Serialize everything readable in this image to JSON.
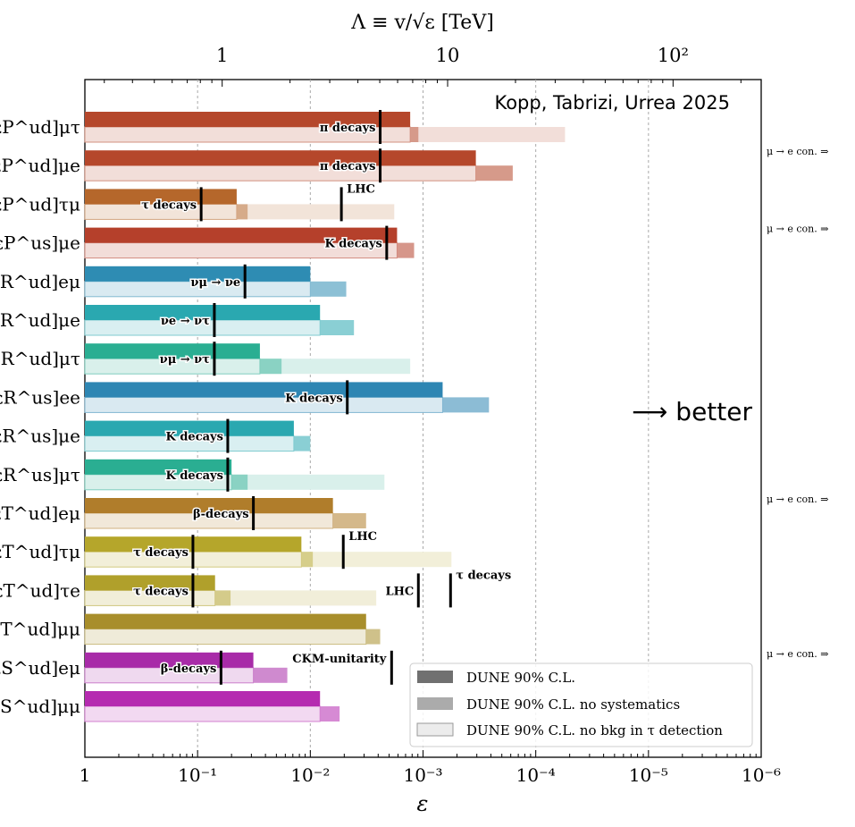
{
  "chart_data": {
    "type": "bar",
    "orientation": "horizontal",
    "title_top_axis": "Λ ≡ v/√ε [TeV]",
    "xlabel": "ε",
    "x_scale": "log-reversed",
    "xlim": [
      1,
      1e-06
    ],
    "top_axis_ticks": [
      "1",
      "10",
      "10²"
    ],
    "bottom_axis_ticks": [
      "1",
      "10⁻¹",
      "10⁻²",
      "10⁻³",
      "10⁻⁴",
      "10⁻⁵",
      "10⁻⁶"
    ],
    "annotation": "Kopp, Tabrizi, Urrea 2025",
    "better_label": "⟶ better",
    "side_note": "μ → e con. ⇒",
    "legend": {
      "placement": "lower-right",
      "entries": [
        "DUNE 90% C.L.",
        "DUNE 90% C.L. no systematics",
        "DUNE 90% C.L. no bkg in τ detection"
      ]
    },
    "rows": [
      {
        "label": "[εP^ud]μτ",
        "color": "#b5472b",
        "dune": 0.0013,
        "nosys": 0.0011,
        "nobkg": 5.5e-05,
        "limits": [
          {
            "value": 0.0024,
            "label": "π decays",
            "side": "left"
          }
        ]
      },
      {
        "label": "[εP^ud]μe",
        "color": "#b5472b",
        "dune": 0.00034,
        "nosys": 0.00016,
        "nobkg": null,
        "side_note": true,
        "limits": [
          {
            "value": 0.0024,
            "label": "π decays",
            "side": "left"
          }
        ]
      },
      {
        "label": "[εP^ud]τμ",
        "color": "#b5672b",
        "dune": 0.045,
        "nosys": 0.036,
        "nobkg": 0.0018,
        "limits": [
          {
            "value": 0.093,
            "label": "τ decays",
            "side": "left"
          },
          {
            "value": 0.0053,
            "label": "LHC",
            "side": "right-up"
          }
        ]
      },
      {
        "label": "[εP^us]μe",
        "color": "#b5402b",
        "dune": 0.0017,
        "nosys": 0.0012,
        "nobkg": null,
        "side_note": true,
        "limits": [
          {
            "value": 0.0021,
            "label": "K decays",
            "side": "left"
          }
        ]
      },
      {
        "label": "[εR^ud]eμ",
        "color": "#2e8cb3",
        "dune": 0.01,
        "nosys": 0.0048,
        "nobkg": null,
        "limits": [
          {
            "value": 0.038,
            "label": "νμ → νe",
            "side": "left"
          }
        ]
      },
      {
        "label": "[εR^ud]μe",
        "color": "#2aa8b0",
        "dune": 0.0082,
        "nosys": 0.0041,
        "nobkg": null,
        "limits": [
          {
            "value": 0.071,
            "label": "νe → ντ",
            "side": "left"
          }
        ]
      },
      {
        "label": "[εR^ud]μτ",
        "color": "#2aae92",
        "dune": 0.028,
        "nosys": 0.018,
        "nobkg": 0.0013,
        "limits": [
          {
            "value": 0.071,
            "label": "νμ → ντ",
            "side": "left"
          }
        ]
      },
      {
        "label": "[εR^us]ee",
        "color": "#2e86b3",
        "dune": 0.00067,
        "nosys": 0.00026,
        "nobkg": null,
        "limits": [
          {
            "value": 0.0047,
            "label": "K decays",
            "side": "left"
          }
        ]
      },
      {
        "label": "[εR^us]μe",
        "color": "#2aa8b0",
        "dune": 0.014,
        "nosys": 0.01,
        "nobkg": null,
        "limits": [
          {
            "value": 0.054,
            "label": "K decays",
            "side": "left"
          }
        ]
      },
      {
        "label": "[εR^us]μτ",
        "color": "#2aae92",
        "dune": 0.05,
        "nosys": 0.036,
        "nobkg": 0.0022,
        "limits": [
          {
            "value": 0.054,
            "label": "K decays",
            "side": "left"
          }
        ]
      },
      {
        "label": "[εT^ud]eμ",
        "color": "#b07d2b",
        "dune": 0.0063,
        "nosys": 0.0032,
        "nobkg": null,
        "side_note": true,
        "limits": [
          {
            "value": 0.032,
            "label": "β-decays",
            "side": "left"
          }
        ]
      },
      {
        "label": "[εT^ud]τμ",
        "color": "#b5a62b",
        "dune": 0.012,
        "nosys": 0.0095,
        "nobkg": 0.00056,
        "limits": [
          {
            "value": 0.11,
            "label": "τ decays",
            "side": "left"
          },
          {
            "value": 0.0051,
            "label": "LHC",
            "side": "right-up"
          }
        ]
      },
      {
        "label": "[εT^ud]τe",
        "color": "#b0a02b",
        "dune": 0.07,
        "nosys": 0.051,
        "nobkg": 0.0026,
        "limits": [
          {
            "value": 0.11,
            "label": "τ decays",
            "side": "left"
          },
          {
            "value": 0.0011,
            "label": "LHC",
            "side": "left"
          },
          {
            "value": 0.00057,
            "label": "τ decays",
            "side": "right-up"
          }
        ]
      },
      {
        "label": "[εT^ud]μμ",
        "color": "#a88e2b",
        "dune": 0.0032,
        "nosys": 0.0024,
        "nobkg": null,
        "limits": []
      },
      {
        "label": "[εS^ud]eμ",
        "color": "#a82ba8",
        "dune": 0.032,
        "nosys": 0.016,
        "nobkg": null,
        "side_note": true,
        "limits": [
          {
            "value": 0.062,
            "label": "β-decays",
            "side": "left"
          },
          {
            "value": 0.0019,
            "label": "CKM-unitarity",
            "side": "left-up"
          }
        ]
      },
      {
        "label": "[εS^ud]μμ",
        "color": "#b52bb0",
        "dune": 0.0082,
        "nosys": 0.0055,
        "nobkg": null,
        "limits": []
      }
    ]
  }
}
